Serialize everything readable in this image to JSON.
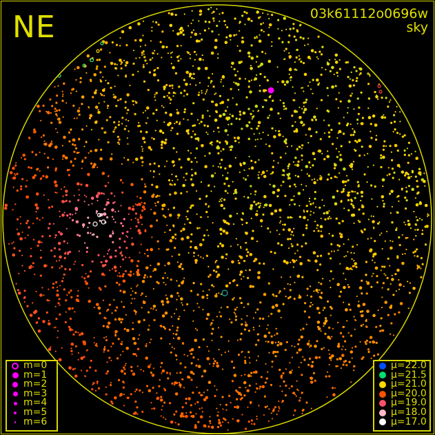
{
  "header": {
    "direction": "NE",
    "frame_id": "03k61112o0696w",
    "mode": "sky"
  },
  "colors": {
    "frame": "#d8d800",
    "horizon_circle": "#d8d800",
    "background": "#000000",
    "planet_marker": "#ff00ff",
    "ring_marker": "#20b0b0"
  },
  "magnitude_legend": {
    "symbol_color": "#ff00ff",
    "items": [
      {
        "label": "m=0",
        "symbol": "ring"
      },
      {
        "label": "m=1",
        "symbol": "dot"
      },
      {
        "label": "m=2",
        "symbol": "dot"
      },
      {
        "label": "m=3",
        "symbol": "dot"
      },
      {
        "label": "m=4",
        "symbol": "dot"
      },
      {
        "label": "m=5",
        "symbol": "dot"
      },
      {
        "label": "m=6",
        "symbol": "dot"
      }
    ]
  },
  "brightness_legend": {
    "items": [
      {
        "label": "μ=22.0",
        "value": 22.0,
        "color": "#0050ff"
      },
      {
        "label": "μ=21.5",
        "value": 21.5,
        "color": "#00e070"
      },
      {
        "label": "μ=21.0",
        "value": 21.0,
        "color": "#ffd800"
      },
      {
        "label": "μ=20.0",
        "value": 20.0,
        "color": "#ff5000"
      },
      {
        "label": "μ=19.0",
        "value": 19.0,
        "color": "#ff5068"
      },
      {
        "label": "μ=18.0",
        "value": 18.0,
        "color": "#ffb8c8"
      },
      {
        "label": "μ=17.0",
        "value": 17.0,
        "color": "#ffffff"
      }
    ]
  }
}
